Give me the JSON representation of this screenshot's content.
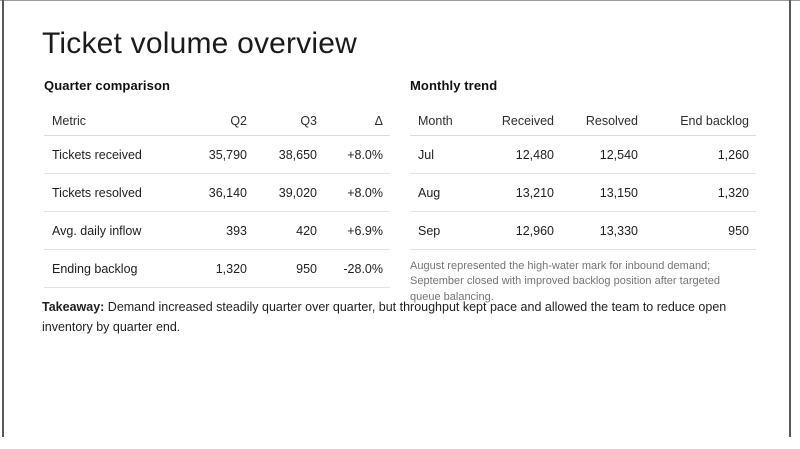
{
  "slide": {
    "title": "Ticket volume overview"
  },
  "quarter_comparison": {
    "heading": "Quarter comparison",
    "columns": [
      "Metric",
      "Q2",
      "Q3",
      "Δ"
    ],
    "rows": [
      {
        "metric": "Tickets received",
        "q2": "35,790",
        "q3": "38,650",
        "delta": "+8.0%"
      },
      {
        "metric": "Tickets resolved",
        "q2": "36,140",
        "q3": "39,020",
        "delta": "+8.0%"
      },
      {
        "metric": "Avg. daily inflow",
        "q2": "393",
        "q3": "420",
        "delta": "+6.9%"
      },
      {
        "metric": "Ending backlog",
        "q2": "1,320",
        "q3": "950",
        "delta": "-28.0%"
      }
    ]
  },
  "monthly_trend": {
    "heading": "Monthly trend",
    "columns": [
      "Month",
      "Received",
      "Resolved",
      "End backlog"
    ],
    "rows": [
      {
        "month": "Jul",
        "received": "12,480",
        "resolved": "12,540",
        "end_backlog": "1,260"
      },
      {
        "month": "Aug",
        "received": "13,210",
        "resolved": "13,150",
        "end_backlog": "1,320"
      },
      {
        "month": "Sep",
        "received": "12,960",
        "resolved": "13,330",
        "end_backlog": "950"
      }
    ],
    "note": "August represented the high-water mark for inbound demand; September closed with improved backlog position after targeted queue balancing."
  },
  "takeaway": {
    "label": "Takeaway:",
    "text": " Demand increased steadily quarter over quarter, but throughput kept pace and allowed the team to reduce open inventory by quarter end."
  }
}
